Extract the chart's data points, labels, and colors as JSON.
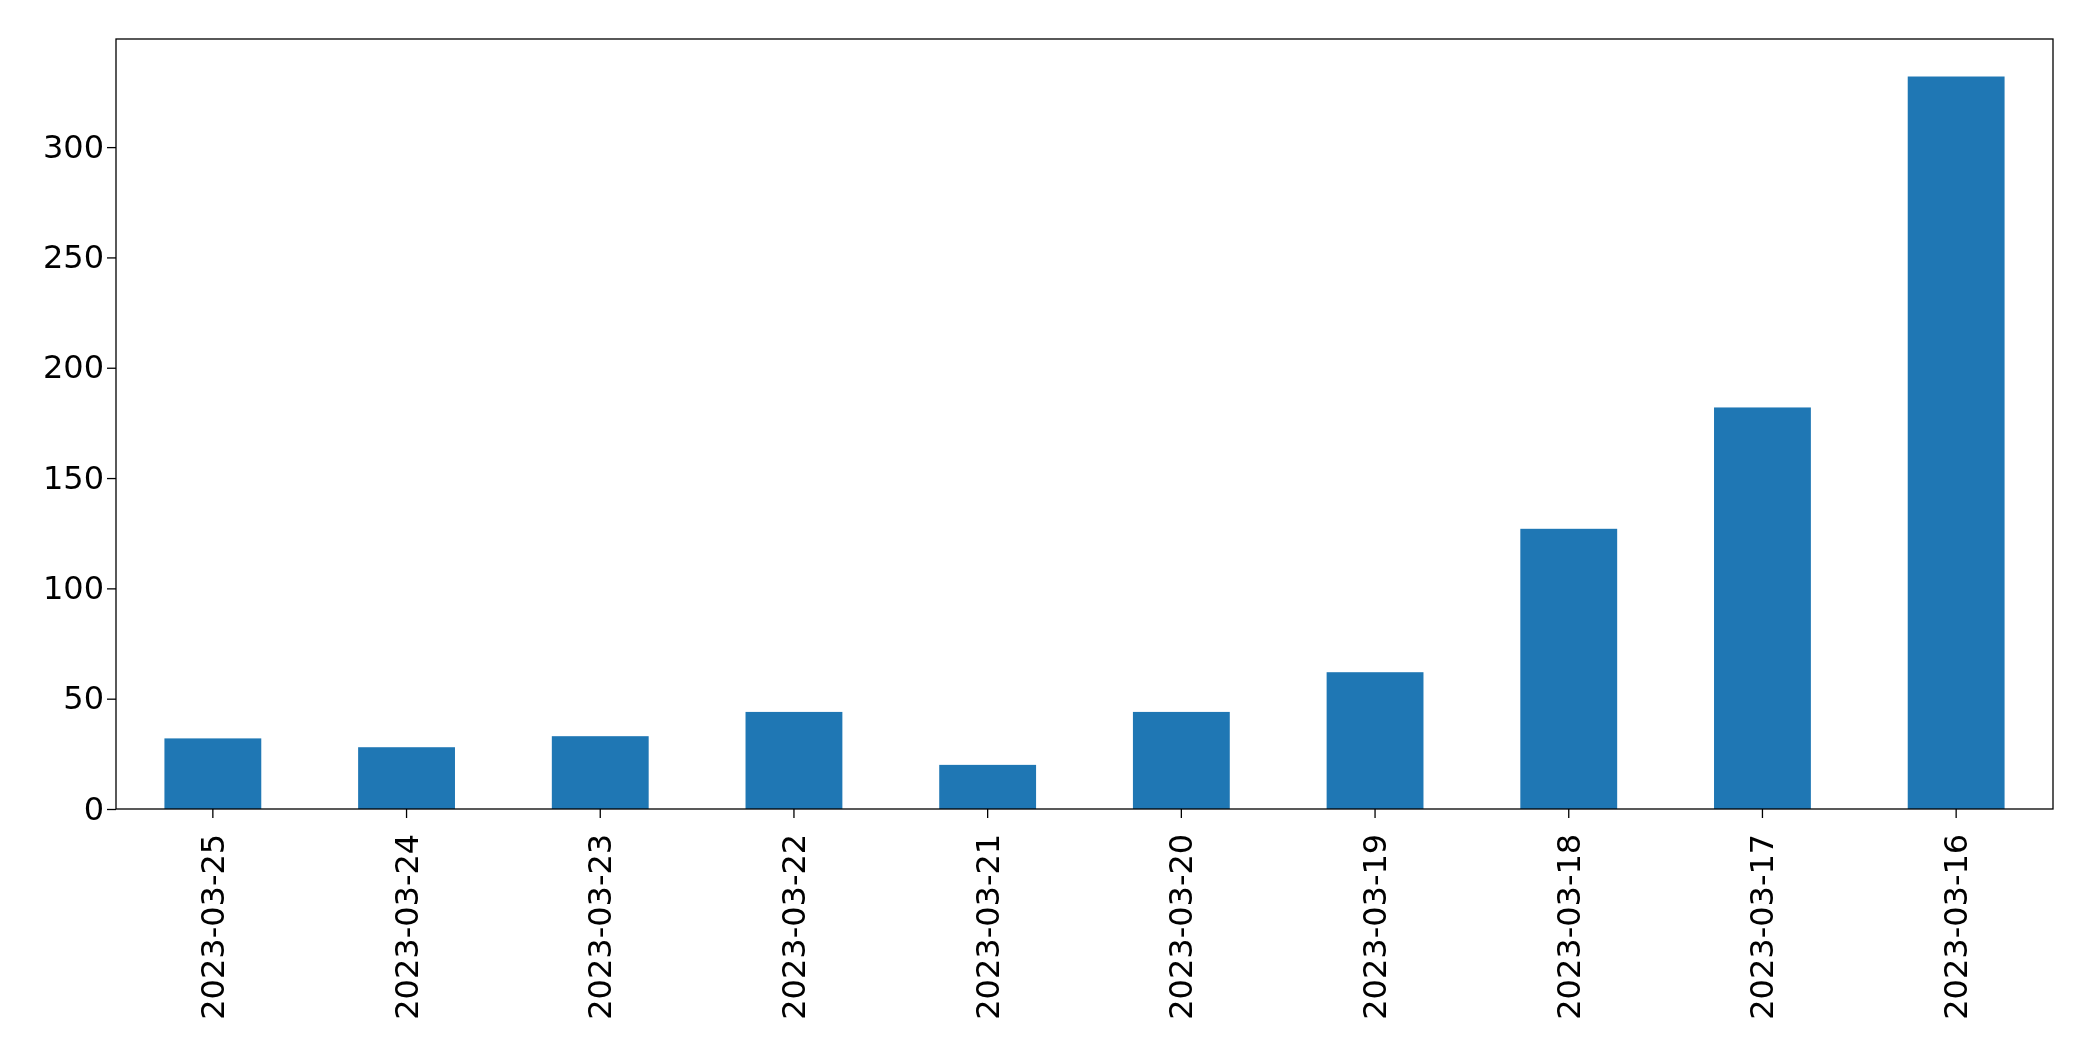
{
  "chart_data": {
    "type": "bar",
    "categories": [
      "2023-03-25",
      "2023-03-24",
      "2023-03-23",
      "2023-03-22",
      "2023-03-21",
      "2023-03-20",
      "2023-03-19",
      "2023-03-18",
      "2023-03-17",
      "2023-03-16"
    ],
    "values": [
      32,
      28,
      33,
      44,
      20,
      44,
      62,
      127,
      182,
      332
    ],
    "color": "#1f77b4",
    "ylim": [
      0,
      349
    ],
    "yticks": [
      0,
      50,
      100,
      150,
      200,
      250,
      300
    ]
  }
}
